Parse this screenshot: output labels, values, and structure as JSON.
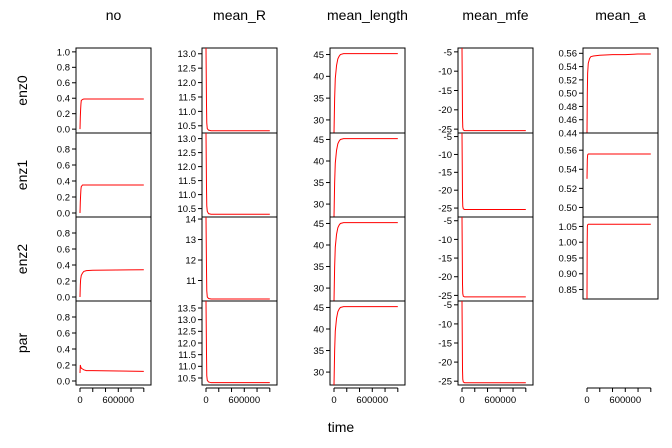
{
  "chart_data": {
    "type": "line",
    "line_color": "#ff0000",
    "xlabel": "time",
    "x_range": [
      0,
      1050000
    ],
    "x_ticks": [
      0,
      200000,
      400000,
      600000,
      800000,
      1000000
    ],
    "x_tick_labels": [
      "0",
      "",
      "",
      "600000",
      "",
      ""
    ],
    "columns": [
      "no",
      "mean_R",
      "mean_length",
      "mean_mfe",
      "mean_a"
    ],
    "rows": [
      "enz0",
      "enz1",
      "enz2",
      "par"
    ],
    "panels": [
      {
        "col": 0,
        "row": 0,
        "ylim": [
          -0.05,
          1.05
        ],
        "yticks": [
          "0.0",
          "0.2",
          "0.4",
          "0.6",
          "0.8",
          "1.0"
        ],
        "series": [
          {
            "x": [
              0,
              5000,
              10000,
              15000,
              20000,
              40000,
              60000,
              80000,
              100000,
              1000000
            ],
            "y": [
              0.0,
              0.16,
              0.26,
              0.33,
              0.37,
              0.385,
              0.39,
              0.39,
              0.39,
              0.39
            ]
          }
        ]
      },
      {
        "col": 0,
        "row": 1,
        "ylim": [
          -0.05,
          1.0
        ],
        "yticks": [
          "0.0",
          "0.2",
          "0.4",
          "0.6",
          "0.8"
        ],
        "series": [
          {
            "x": [
              0,
              5000,
              10000,
              15000,
              20000,
              40000,
              60000,
              80000,
              100000,
              1000000
            ],
            "y": [
              0.0,
              0.14,
              0.23,
              0.3,
              0.33,
              0.35,
              0.35,
              0.35,
              0.35,
              0.35
            ]
          }
        ]
      },
      {
        "col": 0,
        "row": 2,
        "ylim": [
          -0.05,
          1.0
        ],
        "yticks": [
          "0.0",
          "0.2",
          "0.4",
          "0.6",
          "0.8"
        ],
        "series": [
          {
            "x": [
              0,
              5000,
              10000,
              20000,
              40000,
              60000,
              100000,
              200000,
              1000000
            ],
            "y": [
              0.0,
              0.15,
              0.22,
              0.27,
              0.3,
              0.32,
              0.33,
              0.335,
              0.34
            ]
          }
        ]
      },
      {
        "col": 0,
        "row": 3,
        "ylim": [
          -0.05,
          1.0
        ],
        "yticks": [
          "0.0",
          "0.2",
          "0.4",
          "0.6",
          "0.8"
        ],
        "series": [
          {
            "x": [
              0,
              5000,
              10000,
              20000,
              40000,
              60000,
              100000,
              200000,
              1000000
            ],
            "y": [
              0.1,
              0.2,
              0.18,
              0.16,
              0.15,
              0.14,
              0.13,
              0.13,
              0.12
            ]
          }
        ]
      },
      {
        "col": 1,
        "row": 0,
        "ylim": [
          10.25,
          13.2
        ],
        "yticks": [
          "10.5",
          "11.0",
          "11.5",
          "12.0",
          "12.5",
          "13.0"
        ],
        "series": [
          {
            "x": [
              0,
              8000,
              12000,
              20000,
              40000,
              80000,
              1000000
            ],
            "y": [
              13.2,
              11.2,
              10.6,
              10.4,
              10.35,
              10.33,
              10.33
            ]
          }
        ]
      },
      {
        "col": 1,
        "row": 1,
        "ylim": [
          10.2,
          13.2
        ],
        "yticks": [
          "10.5",
          "11.0",
          "11.5",
          "12.0",
          "12.5",
          "13.0"
        ],
        "series": [
          {
            "x": [
              0,
              8000,
              12000,
              20000,
              40000,
              80000,
              1000000
            ],
            "y": [
              13.2,
              11.2,
              10.6,
              10.4,
              10.32,
              10.3,
              10.3
            ]
          }
        ]
      },
      {
        "col": 1,
        "row": 2,
        "ylim": [
          10.0,
          14.1
        ],
        "yticks": [
          "11",
          "12",
          "13",
          "14"
        ],
        "series": [
          {
            "x": [
              0,
              8000,
              12000,
              20000,
              40000,
              80000,
              1000000
            ],
            "y": [
              14.1,
              11.5,
              10.5,
              10.2,
              10.12,
              10.1,
              10.1
            ]
          }
        ]
      },
      {
        "col": 1,
        "row": 3,
        "ylim": [
          10.2,
          13.8
        ],
        "yticks": [
          "10.5",
          "11.0",
          "11.5",
          "12.0",
          "12.5",
          "13.0",
          "13.5"
        ],
        "series": [
          {
            "x": [
              0,
              8000,
              12000,
              20000,
              40000,
              80000,
              1000000
            ],
            "y": [
              13.8,
              11.5,
              10.6,
              10.4,
              10.33,
              10.3,
              10.3
            ]
          }
        ]
      },
      {
        "col": 2,
        "row": 0,
        "ylim": [
          27.0,
          46.5
        ],
        "yticks": [
          "30",
          "35",
          "40",
          "45"
        ],
        "series": [
          {
            "x": [
              0,
              5000,
              10000,
              20000,
              40000,
              60000,
              80000,
              100000,
              150000,
              200000,
              1000000
            ],
            "y": [
              27.0,
              31.0,
              35.0,
              39.5,
              42.5,
              44.0,
              44.6,
              45.0,
              45.2,
              45.2,
              45.2
            ]
          }
        ]
      },
      {
        "col": 2,
        "row": 1,
        "ylim": [
          27.0,
          46.5
        ],
        "yticks": [
          "30",
          "35",
          "40",
          "45"
        ],
        "series": [
          {
            "x": [
              0,
              5000,
              10000,
              20000,
              40000,
              60000,
              80000,
              100000,
              150000,
              200000,
              1000000
            ],
            "y": [
              27.0,
              31.0,
              35.0,
              39.5,
              42.5,
              44.0,
              44.6,
              45.0,
              45.2,
              45.2,
              45.2
            ]
          }
        ]
      },
      {
        "col": 2,
        "row": 2,
        "ylim": [
          27.0,
          46.5
        ],
        "yticks": [
          "30",
          "35",
          "40",
          "45"
        ],
        "series": [
          {
            "x": [
              0,
              5000,
              10000,
              20000,
              40000,
              60000,
              80000,
              100000,
              150000,
              200000,
              1000000
            ],
            "y": [
              27.0,
              31.0,
              35.0,
              39.5,
              42.5,
              44.0,
              44.6,
              45.0,
              45.2,
              45.2,
              45.2
            ]
          }
        ]
      },
      {
        "col": 2,
        "row": 3,
        "ylim": [
          27.0,
          46.5
        ],
        "yticks": [
          "30",
          "35",
          "40",
          "45"
        ],
        "series": [
          {
            "x": [
              0,
              5000,
              10000,
              20000,
              40000,
              60000,
              80000,
              100000,
              150000,
              200000,
              1000000
            ],
            "y": [
              27.0,
              31.0,
              35.0,
              39.5,
              42.5,
              44.0,
              44.6,
              45.0,
              45.2,
              45.2,
              45.2
            ]
          }
        ]
      },
      {
        "col": 3,
        "row": 0,
        "ylim": [
          -26.0,
          -4.0
        ],
        "yticks": [
          "-25",
          "-20",
          "-15",
          "-10",
          "-5"
        ],
        "series": [
          {
            "x": [
              0,
              8000,
              12000,
              20000,
              40000,
              1000000
            ],
            "y": [
              -4.0,
              -22.0,
              -24.5,
              -25.2,
              -25.4,
              -25.4
            ]
          }
        ]
      },
      {
        "col": 3,
        "row": 1,
        "ylim": [
          -27.5,
          -4.0
        ],
        "yticks": [
          "-25",
          "-20",
          "-15",
          "-10",
          "-5"
        ],
        "series": [
          {
            "x": [
              0,
              8000,
              12000,
              20000,
              40000,
              1000000
            ],
            "y": [
              -4.0,
              -22.0,
              -24.5,
              -25.2,
              -25.4,
              -25.4
            ]
          }
        ]
      },
      {
        "col": 3,
        "row": 2,
        "ylim": [
          -26.5,
          -4.0
        ],
        "yticks": [
          "-25",
          "-20",
          "-15",
          "-10",
          "-5"
        ],
        "series": [
          {
            "x": [
              0,
              8000,
              12000,
              20000,
              40000,
              1000000
            ],
            "y": [
              -4.0,
              -22.0,
              -24.5,
              -25.2,
              -25.4,
              -25.4
            ]
          }
        ]
      },
      {
        "col": 3,
        "row": 3,
        "ylim": [
          -26.0,
          -4.0
        ],
        "yticks": [
          "-25",
          "-20",
          "-15",
          "-10",
          "-5"
        ],
        "series": [
          {
            "x": [
              0,
              8000,
              12000,
              20000,
              40000,
              1000000
            ],
            "y": [
              -4.0,
              -22.0,
              -24.5,
              -25.2,
              -25.4,
              -25.4
            ]
          }
        ]
      },
      {
        "col": 4,
        "row": 0,
        "ylim": [
          0.44,
          0.568
        ],
        "yticks": [
          "0.44",
          "0.46",
          "0.48",
          "0.50",
          "0.52",
          "0.54",
          "0.56"
        ],
        "series": [
          {
            "x": [
              0,
              5000,
              10000,
              20000,
              40000,
              60000,
              100000,
              200000,
              400000,
              600000,
              800000,
              1000000
            ],
            "y": [
              0.44,
              0.5,
              0.53,
              0.545,
              0.552,
              0.555,
              0.556,
              0.557,
              0.558,
              0.558,
              0.559,
              0.559
            ]
          }
        ]
      },
      {
        "col": 4,
        "row": 1,
        "ylim": [
          0.49,
          0.578
        ],
        "yticks": [
          "0.50",
          "0.52",
          "0.54",
          "0.56"
        ],
        "series": [
          {
            "x": [
              0,
              5000,
              10000,
              20000,
              40000,
              100000,
              1000000
            ],
            "y": [
              0.53,
              0.55,
              0.555,
              0.556,
              0.556,
              0.556,
              0.556
            ]
          }
        ]
      },
      {
        "col": 4,
        "row": 2,
        "ylim": [
          0.82,
          1.08
        ],
        "yticks": [
          "0.85",
          "0.90",
          "0.95",
          "1.00",
          "1.05"
        ],
        "series": [
          {
            "x": [
              0,
              3000,
              6000,
              10000,
              20000,
              40000,
              100000,
              1000000
            ],
            "y": [
              0.82,
              1.0,
              1.05,
              1.055,
              1.057,
              1.057,
              1.057,
              1.057
            ]
          }
        ]
      }
    ]
  }
}
